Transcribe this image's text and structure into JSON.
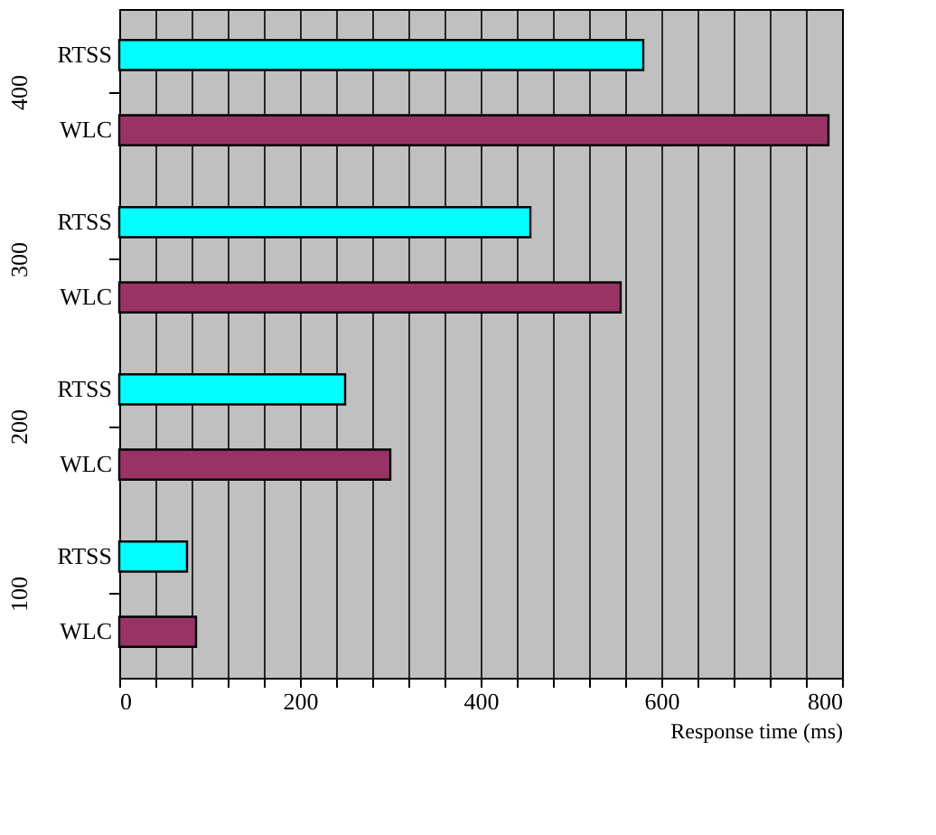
{
  "chart_data": {
    "type": "bar",
    "orientation": "horizontal",
    "xlabel": "Response time (ms)",
    "categories": [
      "400",
      "300",
      "200",
      "100"
    ],
    "series": [
      {
        "name": "RTSS",
        "color": "#00ffff",
        "values": [
          580,
          455,
          250,
          75
        ]
      },
      {
        "name": "WLC",
        "color": "#993366",
        "values": [
          785,
          555,
          300,
          85
        ]
      }
    ],
    "xlim": [
      0,
      800
    ],
    "xticks": [
      0,
      {
        "value": 40,
        "label": null
      },
      {
        "value": 80,
        "label": null
      },
      {
        "value": 120,
        "label": null
      },
      {
        "value": 160,
        "label": null
      },
      200,
      {
        "value": 240,
        "label": null
      },
      {
        "value": 280,
        "label": null
      },
      {
        "value": 320,
        "label": null
      },
      {
        "value": 360,
        "label": null
      },
      400,
      {
        "value": 440,
        "label": null
      },
      {
        "value": 480,
        "label": null
      },
      {
        "value": 520,
        "label": null
      },
      {
        "value": 560,
        "label": null
      },
      600,
      {
        "value": 640,
        "label": null
      },
      {
        "value": 680,
        "label": null
      },
      {
        "value": 720,
        "label": null
      },
      {
        "value": 760,
        "label": null
      },
      800
    ],
    "grid": "x"
  }
}
